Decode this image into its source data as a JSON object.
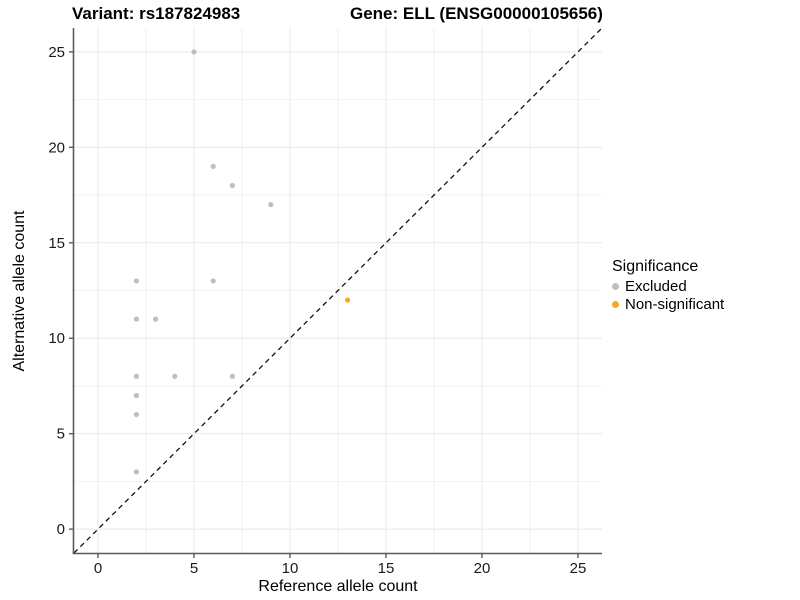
{
  "titles": {
    "variant": "Variant: rs187824983",
    "gene": "Gene: ELL (ENSG00000105656)"
  },
  "axes": {
    "x_label": "Reference allele count",
    "y_label": "Alternative allele count"
  },
  "legend": {
    "title": "Significance",
    "items": [
      {
        "label": "Excluded",
        "color": "#BEBEBE"
      },
      {
        "label": "Non-significant",
        "color": "#FAA528"
      }
    ]
  },
  "colors": {
    "excluded": "#BEBEBE",
    "non_significant": "#FAA528",
    "axis_line": "#595959",
    "tick_label": "#1A1A1A",
    "grid_major": "#E8E8E8",
    "grid_minor": "#F2F2F2",
    "identity_line": "#111111"
  },
  "chart_data": {
    "type": "scatter",
    "title": "Variant: rs187824983 / Gene: ELL (ENSG00000105656)",
    "xlabel": "Reference allele count",
    "ylabel": "Alternative allele count",
    "xlim": [
      -1.25,
      26.25
    ],
    "ylim": [
      -1.25,
      26.25
    ],
    "x_ticks": [
      0,
      5,
      10,
      15,
      20,
      25
    ],
    "y_ticks": [
      0,
      5,
      10,
      15,
      20,
      25
    ],
    "x_minor_ticks": [
      2.5,
      7.5,
      12.5,
      17.5,
      22.5
    ],
    "y_minor_ticks": [
      2.5,
      7.5,
      12.5,
      17.5,
      22.5
    ],
    "grid": true,
    "legend_position": "right",
    "reference_line": {
      "kind": "identity",
      "style": "dashed"
    },
    "series": [
      {
        "name": "Excluded",
        "color": "#BEBEBE",
        "points": [
          [
            2,
            3
          ],
          [
            2,
            6
          ],
          [
            2,
            7
          ],
          [
            2,
            8
          ],
          [
            2,
            11
          ],
          [
            2,
            13
          ],
          [
            3,
            11
          ],
          [
            4,
            8
          ],
          [
            5,
            25
          ],
          [
            6,
            13
          ],
          [
            6,
            19
          ],
          [
            7,
            8
          ],
          [
            7,
            18
          ],
          [
            9,
            17
          ]
        ]
      },
      {
        "name": "Non-significant",
        "color": "#FAA528",
        "points": [
          [
            13,
            12
          ]
        ]
      }
    ]
  }
}
